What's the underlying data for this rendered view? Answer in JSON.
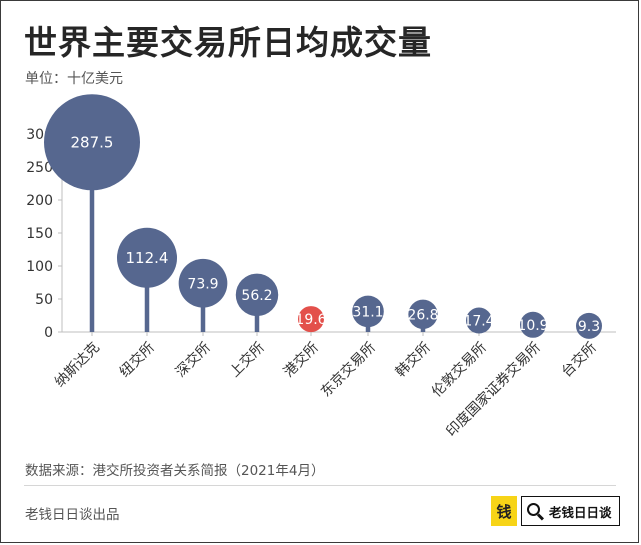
{
  "header": {
    "title": "世界主要交易所日均成交量",
    "unit": "单位：十亿美元"
  },
  "footer": {
    "source": "数据来源：港交所投资者关系简报（2021年4月）",
    "brand": "老钱日日谈出品",
    "logo_mark": "钱",
    "logo_text": "老钱日日谈"
  },
  "icons": {
    "search": "search-icon"
  },
  "colors": {
    "bubble": "#56678f",
    "highlight": "#e3504b",
    "axis": "#bfbfbf"
  },
  "chart_data": {
    "type": "lollipop-bubble",
    "categories": [
      "纳斯达克",
      "纽交所",
      "深交所",
      "上交所",
      "港交所",
      "东京交易所",
      "韩交所",
      "伦敦交易所",
      "印度国家证券交易所",
      "台交所"
    ],
    "values": [
      287.5,
      112.4,
      73.9,
      56.2,
      19.6,
      31.1,
      26.8,
      17.4,
      10.9,
      9.3
    ],
    "value_labels": [
      "287.5",
      "112.4",
      "73.9",
      "56.2",
      "19.6",
      "31.1",
      "26.8",
      "17.4",
      "10.9",
      "9.3"
    ],
    "highlight_category": "港交所",
    "y_ticks": [
      "0",
      "50",
      "100",
      "150",
      "200",
      "250",
      "300"
    ],
    "ylim": [
      0,
      300
    ],
    "grid": false
  }
}
